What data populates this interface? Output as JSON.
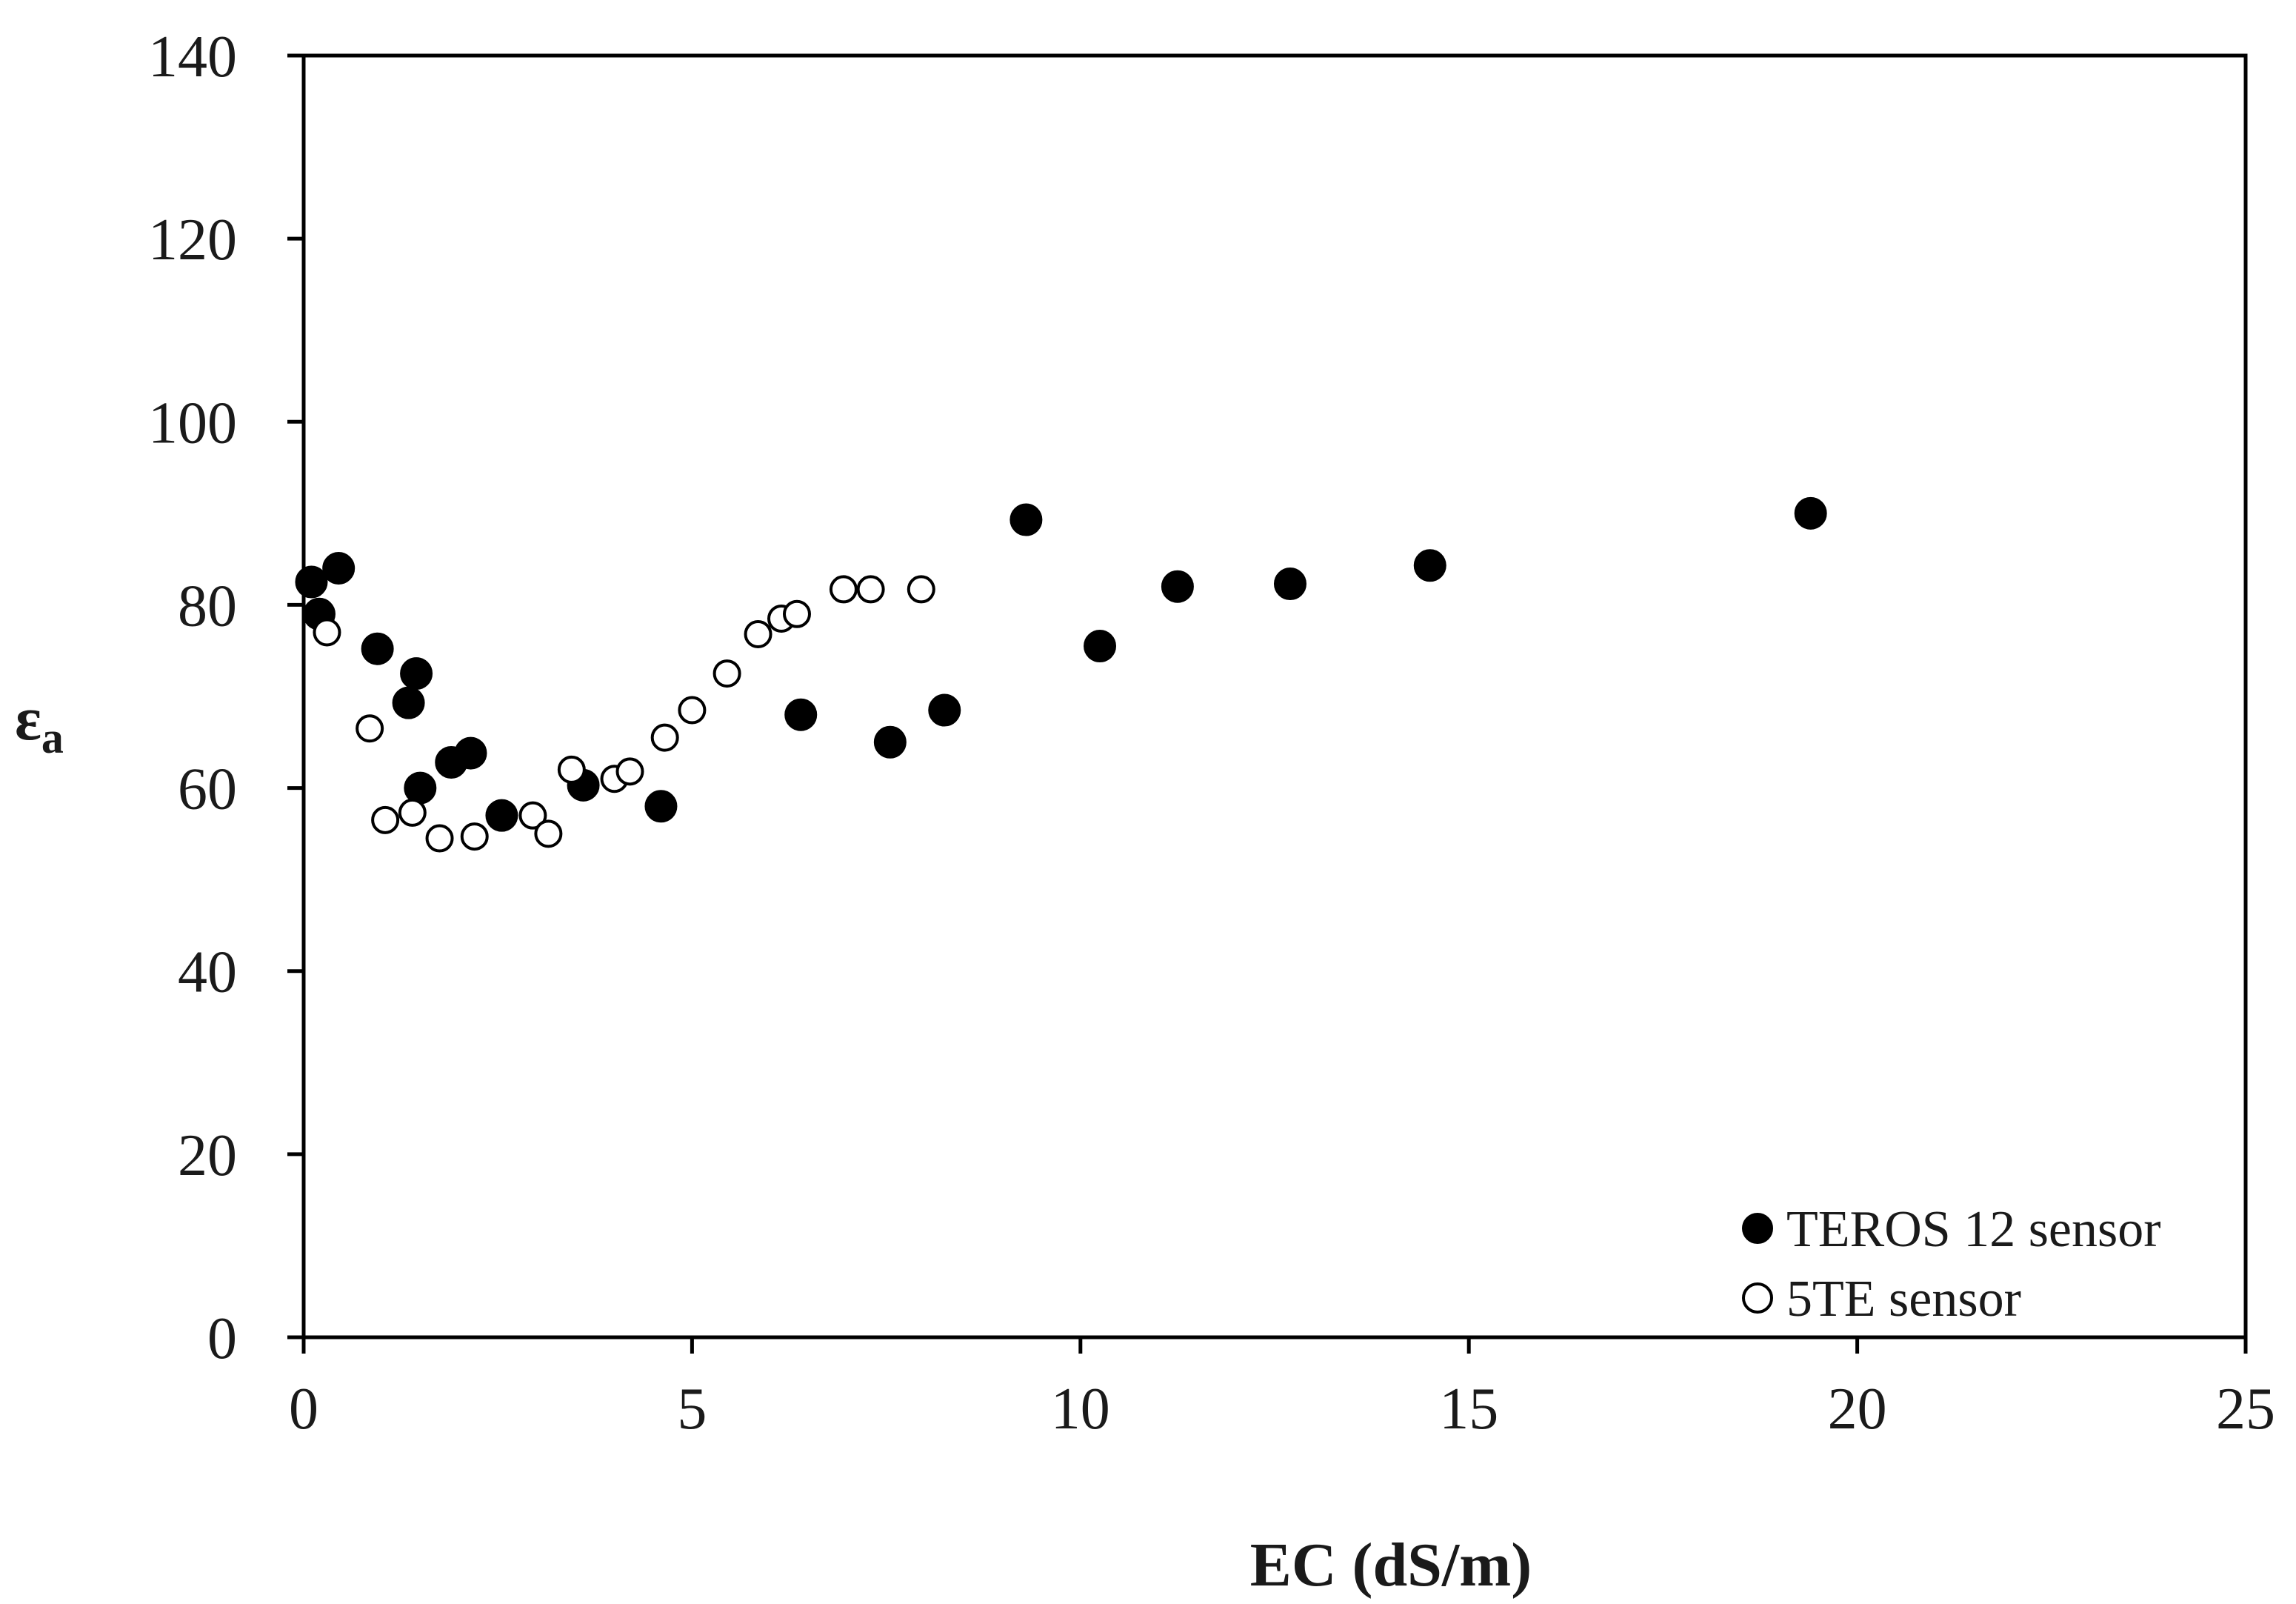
{
  "chart_data": {
    "type": "scatter",
    "xlabel": "EC (dS/m)",
    "ylabel_main": "ε",
    "ylabel_sub": "a",
    "xlim": [
      0,
      25
    ],
    "ylim": [
      0,
      140
    ],
    "x_ticks": [
      0,
      5,
      10,
      15,
      20,
      25
    ],
    "y_ticks": [
      0,
      20,
      40,
      60,
      80,
      100,
      120,
      140
    ],
    "grid": false,
    "legend_position": "bottom-right",
    "series": [
      {
        "name": "TEROS 12 sensor",
        "marker": "filled-circle",
        "color": "#000000",
        "points": [
          [
            0.1,
            82.5
          ],
          [
            0.2,
            79.0
          ],
          [
            0.45,
            84.0
          ],
          [
            0.95,
            75.2
          ],
          [
            1.35,
            69.3
          ],
          [
            1.45,
            72.5
          ],
          [
            1.5,
            60.0
          ],
          [
            1.9,
            62.8
          ],
          [
            2.15,
            63.8
          ],
          [
            2.55,
            57.0
          ],
          [
            3.6,
            60.3
          ],
          [
            4.6,
            58.0
          ],
          [
            6.4,
            68.0
          ],
          [
            7.55,
            65.0
          ],
          [
            8.25,
            68.5
          ],
          [
            9.3,
            89.3
          ],
          [
            10.25,
            75.5
          ],
          [
            11.25,
            82.0
          ],
          [
            12.7,
            82.3
          ],
          [
            14.5,
            84.3
          ],
          [
            19.4,
            90.0
          ]
        ]
      },
      {
        "name": "5TE sensor",
        "marker": "open-circle",
        "color": "#000000",
        "points": [
          [
            0.3,
            77.0
          ],
          [
            0.85,
            66.5
          ],
          [
            1.05,
            56.5
          ],
          [
            1.4,
            57.3
          ],
          [
            1.75,
            54.5
          ],
          [
            2.2,
            54.7
          ],
          [
            2.95,
            57.0
          ],
          [
            3.15,
            55.0
          ],
          [
            3.45,
            62.0
          ],
          [
            4.0,
            61.0
          ],
          [
            4.2,
            61.8
          ],
          [
            4.65,
            65.5
          ],
          [
            5.0,
            68.5
          ],
          [
            5.45,
            72.5
          ],
          [
            5.85,
            76.8
          ],
          [
            6.15,
            78.5
          ],
          [
            6.35,
            79.0
          ],
          [
            6.95,
            81.7
          ],
          [
            7.3,
            81.7
          ],
          [
            7.95,
            81.7
          ]
        ]
      }
    ]
  }
}
